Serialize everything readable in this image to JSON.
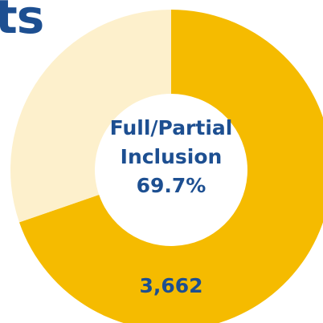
{
  "heading": {
    "visible_fragment": "ts"
  },
  "chart_data": {
    "type": "pie",
    "style": "donut",
    "center_label": {
      "line1": "Full/Partial",
      "line2": "Inclusion",
      "line3": "69.7%"
    },
    "slices": [
      {
        "label": "Full/Partial Inclusion",
        "percent": 69.7,
        "count_label": "3,662",
        "color": "#f5bb00"
      },
      {
        "label": "",
        "percent": 30.3,
        "count_label": "",
        "color": "#fdf0cc"
      }
    ],
    "start_angle_deg": 0,
    "direction": "clockwise"
  },
  "colors": {
    "accent": "#f5bb00",
    "secondary_slice": "#fdf0cc",
    "text": "#1d4f91",
    "background": "#ffffff"
  }
}
